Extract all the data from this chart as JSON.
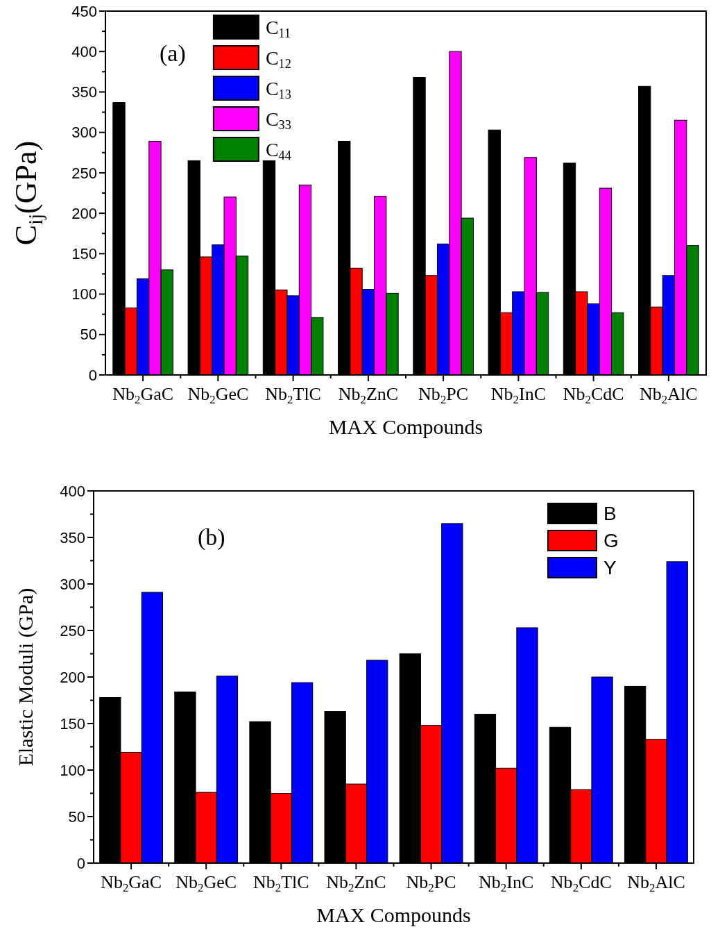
{
  "chart_data": [
    {
      "type": "bar",
      "xlabel": "MAX Compounds",
      "ylabel": "C$_{ij}$(GPa)",
      "annotations": [
        "(a)"
      ],
      "categories": [
        "Nb$_{2}$GaC",
        "Nb$_{2}$GeC",
        "Nb$_{2}$TlC",
        "Nb$_{2}$ZnC",
        "Nb$_{2}$PC",
        "Nb$_{2}$InC",
        "Nb$_{2}$CdC",
        "Nb$_{2}$AlC"
      ],
      "series": [
        {
          "name": "C$_{11}$",
          "color": "#000000",
          "values": [
            337,
            265,
            265,
            289,
            368,
            303,
            262,
            357
          ]
        },
        {
          "name": "C$_{12}$",
          "color": "#ff0000",
          "values": [
            83,
            146,
            105,
            132,
            123,
            77,
            103,
            84
          ]
        },
        {
          "name": "C$_{13}$",
          "color": "#0000ff",
          "values": [
            119,
            161,
            98,
            106,
            162,
            103,
            88,
            123
          ]
        },
        {
          "name": "C$_{33}$",
          "color": "#ff00ff",
          "values": [
            289,
            220,
            235,
            221,
            400,
            269,
            231,
            315
          ]
        },
        {
          "name": "C$_{44}$",
          "color": "#008000",
          "values": [
            130,
            147,
            71,
            101,
            194,
            102,
            77,
            160
          ]
        }
      ],
      "ylim": [
        0,
        450
      ],
      "yticks": [
        0,
        {
          "value": 25,
          "label": null
        },
        50,
        {
          "value": 75,
          "label": null
        },
        100,
        {
          "value": 125,
          "label": null
        },
        150,
        {
          "value": 175,
          "label": null
        },
        200,
        {
          "value": 225,
          "label": null
        },
        250,
        {
          "value": 275,
          "label": null
        },
        300,
        {
          "value": 325,
          "label": null
        },
        350,
        {
          "value": 375,
          "label": null
        },
        400,
        {
          "value": 425,
          "label": null
        },
        450
      ],
      "grid": false,
      "legend": "top"
    },
    {
      "type": "bar",
      "xlabel": "MAX Compounds",
      "ylabel": "Elastic Moduli (GPa)",
      "annotations": [
        "(b)"
      ],
      "categories": [
        "Nb$_{2}$GaC",
        "Nb$_{2}$GeC",
        "Nb$_{2}$TlC",
        "Nb$_{2}$ZnC",
        "Nb$_{2}$PC",
        "Nb$_{2}$InC",
        "Nb$_{2}$CdC",
        "Nb$_{2}$AlC"
      ],
      "series": [
        {
          "name": "B",
          "color": "#000000",
          "values": [
            178,
            184,
            152,
            163,
            225,
            160,
            146,
            190
          ]
        },
        {
          "name": "G",
          "color": "#ff0000",
          "values": [
            119,
            76,
            75,
            85,
            148,
            102,
            79,
            133
          ]
        },
        {
          "name": "Y",
          "color": "#0000ff",
          "values": [
            291,
            201,
            194,
            218,
            365,
            253,
            200,
            324
          ]
        }
      ],
      "ylim": [
        0,
        400
      ],
      "yticks": [
        0,
        {
          "value": 25,
          "label": null
        },
        50,
        {
          "value": 75,
          "label": null
        },
        100,
        {
          "value": 125,
          "label": null
        },
        150,
        {
          "value": 175,
          "label": null
        },
        200,
        {
          "value": 225,
          "label": null
        },
        250,
        {
          "value": 275,
          "label": null
        },
        300,
        {
          "value": 325,
          "label": null
        },
        350,
        {
          "value": 375,
          "label": null
        },
        400
      ],
      "grid": false,
      "legend": "top right"
    }
  ]
}
